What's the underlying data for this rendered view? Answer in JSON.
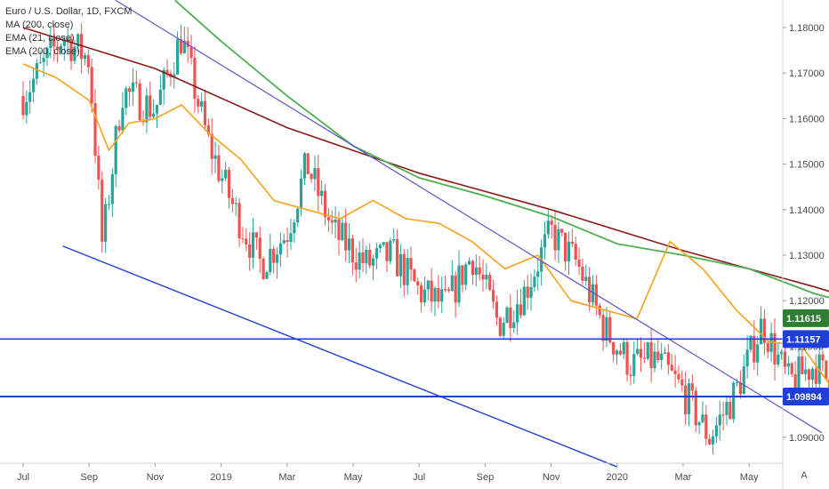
{
  "legend": {
    "symbol": "Euro / U.S. Dollar, 1D, FXCM",
    "ma200": "MA (200, close)",
    "ema21": "EMA (21, close)",
    "ema200": "EMA (200, close)"
  },
  "price_labels": {
    "current": "1.11615",
    "resistance": "1.11157",
    "support": "1.09894"
  },
  "auto_button": "A",
  "colors": {
    "up": "#26a69a",
    "down": "#ef5350",
    "ma200": "#8b1a1a",
    "ema21": "#f7a21b",
    "ema200": "#4caf50",
    "trendline": "#5b57c9",
    "channel": "#1f3fd6",
    "hline": "#1f3fd6",
    "arrow": "#3b5bf0",
    "current_label": "#2e7d32"
  },
  "chart_data": {
    "type": "candlestick",
    "title": "Euro / U.S. Dollar, 1D, FXCM",
    "x_tick_labels": [
      "Jul",
      "Sep",
      "Nov",
      "2019",
      "Mar",
      "May",
      "Jul",
      "Sep",
      "Nov",
      "2020",
      "Mar",
      "May"
    ],
    "y_tick_labels": [
      "1.18000",
      "1.17000",
      "1.16000",
      "1.15000",
      "1.14000",
      "1.13000",
      "1.12000",
      "1.11000",
      "1.10000",
      "1.09000"
    ],
    "ylim": [
      1.0835,
      1.1865
    ],
    "series": [
      {
        "name": "MA (200, close)",
        "x": [
          0,
          2,
          4,
          6,
          8,
          10,
          12,
          13.45
        ],
        "y": [
          1.18,
          1.171,
          1.158,
          1.148,
          1.14,
          1.131,
          1.123,
          1.1165
        ]
      },
      {
        "name": "EMA (200, close)",
        "x": [
          2.3,
          3,
          4,
          5,
          6,
          7,
          8,
          9,
          10,
          11,
          12,
          13.45
        ],
        "y": [
          1.186,
          1.177,
          1.165,
          1.154,
          1.147,
          1.143,
          1.1385,
          1.1325,
          1.13,
          1.127,
          1.1215,
          1.116
        ]
      },
      {
        "name": "EMA (21, close)",
        "x": [
          0,
          0.5,
          1,
          1.3,
          1.6,
          2,
          2.4,
          2.8,
          3.3,
          3.8,
          4.3,
          4.8,
          5.3,
          5.8,
          6.3,
          6.8,
          7.3,
          7.8,
          8.3,
          8.8,
          9.3,
          9.8,
          10.3,
          10.8,
          11.3,
          11.8,
          12.3,
          12.8,
          13.2,
          13.45
        ],
        "y": [
          1.172,
          1.169,
          1.164,
          1.153,
          1.159,
          1.16,
          1.163,
          1.157,
          1.151,
          1.142,
          1.14,
          1.138,
          1.142,
          1.138,
          1.137,
          1.133,
          1.127,
          1.13,
          1.12,
          1.118,
          1.116,
          1.133,
          1.127,
          1.118,
          1.111,
          1.11,
          1.1,
          1.108,
          1.105,
          1.1095
        ]
      },
      {
        "name": "Close",
        "x": [
          0,
          0.6,
          1,
          1.2,
          1.5,
          2,
          2.4,
          2.8,
          3.2,
          3.6,
          4.0,
          4.3,
          4.7,
          5.2,
          5.6,
          6.0,
          6.4,
          6.8,
          7.2,
          7.6,
          8.0,
          8.4,
          8.8,
          9.2,
          9.6,
          10.0,
          10.4,
          10.8,
          11.2,
          11.6,
          12.0,
          12.4,
          12.7,
          13.0,
          13.3,
          13.45
        ],
        "y": [
          1.165,
          1.178,
          1.173,
          1.132,
          1.166,
          1.162,
          1.178,
          1.155,
          1.14,
          1.128,
          1.135,
          1.15,
          1.135,
          1.128,
          1.13,
          1.122,
          1.119,
          1.13,
          1.115,
          1.122,
          1.135,
          1.128,
          1.114,
          1.106,
          1.107,
          1.1,
          1.09,
          1.1,
          1.115,
          1.102,
          1.106,
          1.099,
          1.108,
          1.108,
          1.113,
          1.1161
        ]
      }
    ],
    "annotations": {
      "descending_trendline": {
        "x": [
          1.4,
          12.1
        ],
        "y": [
          1.186,
          1.091
        ]
      },
      "lower_channel": {
        "x": [
          0.6,
          9.0
        ],
        "y": [
          1.132,
          1.0835
        ]
      },
      "hline_resistance": 1.11157,
      "hline_support": 1.09894,
      "arrow_projection": {
        "x": [
          13.45,
          13.7
        ],
        "y": [
          1.114,
          1.129
        ]
      }
    },
    "grid": false,
    "legend_position": "top-left"
  }
}
